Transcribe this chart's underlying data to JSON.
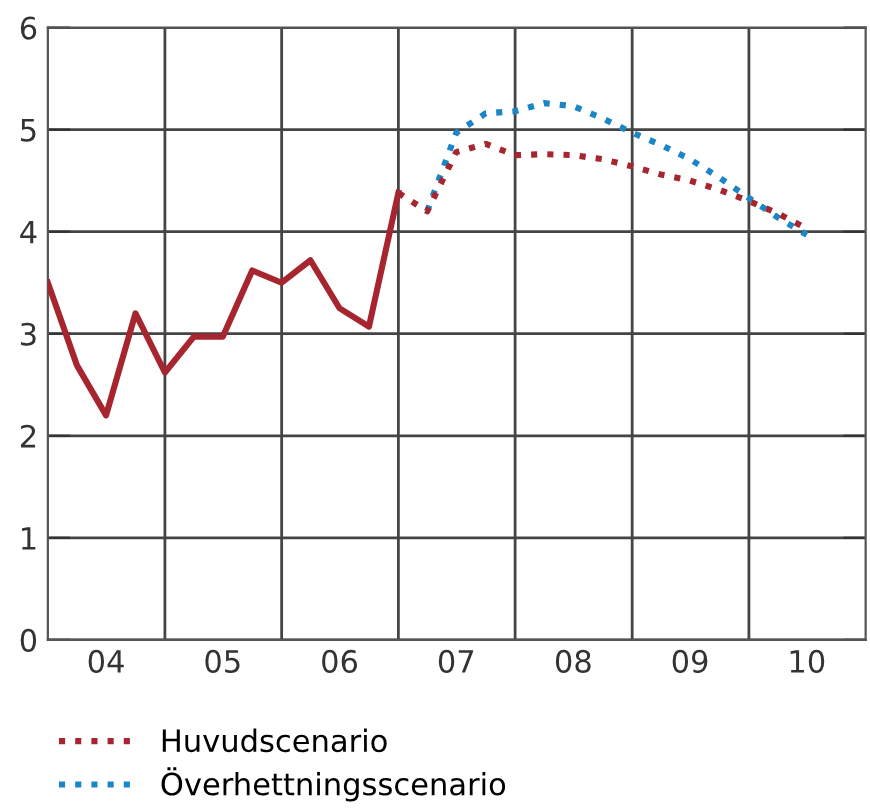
{
  "chart_data": {
    "type": "line",
    "xlim": [
      "2004-01-01",
      "2011-01-01"
    ],
    "ylim": [
      0,
      6
    ],
    "yticks": [
      0,
      1,
      2,
      3,
      4,
      5,
      6
    ],
    "xticks": [
      {
        "value": "2005-01-01",
        "label": null
      },
      {
        "value": "2006-01-01",
        "label": null
      },
      {
        "value": "2007-01-01",
        "label": null
      },
      {
        "value": "2008-01-01",
        "label": null
      },
      {
        "value": "2009-01-01",
        "label": null
      },
      {
        "value": "2010-01-01",
        "label": null
      },
      {
        "value": "2004-07-01",
        "label": "04"
      },
      {
        "value": "2005-07-01",
        "label": "05"
      },
      {
        "value": "2006-07-01",
        "label": "06"
      },
      {
        "value": "2007-07-01",
        "label": "07"
      },
      {
        "value": "2008-07-01",
        "label": "08"
      },
      {
        "value": "2009-07-01",
        "label": "09"
      },
      {
        "value": "2010-07-01",
        "label": "10"
      }
    ],
    "grid": true,
    "legend": "bottom",
    "series": [
      {
        "color": "#a6252f",
        "line_style": "solid",
        "x": [
          "2004-01",
          "2004-04",
          "2004-07",
          "2004-10",
          "2005-01",
          "2005-04",
          "2005-07",
          "2005-10",
          "2006-01",
          "2006-04",
          "2006-07",
          "2006-10",
          "2007-01"
        ],
        "values": [
          3.5,
          2.69,
          2.2,
          3.2,
          2.62,
          2.97,
          2.97,
          3.62,
          3.5,
          3.72,
          3.25,
          3.07,
          4.38
        ]
      },
      {
        "name": "Överhettningsscenario",
        "color": "#1a86c8",
        "line_style": "dotted",
        "x": [
          "2007-04",
          "2007-07",
          "2007-10",
          "2008-01",
          "2008-04",
          "2008-07",
          "2008-10",
          "2009-01",
          "2009-04",
          "2009-07",
          "2009-10",
          "2010-01",
          "2010-04",
          "2010-07"
        ],
        "values": [
          4.2,
          4.97,
          5.16,
          5.18,
          5.26,
          5.23,
          5.11,
          4.97,
          4.85,
          4.71,
          4.53,
          4.33,
          4.14,
          3.97
        ]
      },
      {
        "name": "Huvudscenario",
        "color": "#a6252f",
        "line_style": "dotted",
        "x": [
          "2007-01",
          "2007-04",
          "2007-07",
          "2007-10",
          "2008-01",
          "2008-04",
          "2008-07",
          "2008-10",
          "2009-01",
          "2009-04",
          "2009-07",
          "2009-10",
          "2010-01",
          "2010-04",
          "2010-07"
        ],
        "values": [
          4.38,
          4.2,
          4.78,
          4.86,
          4.75,
          4.76,
          4.75,
          4.71,
          4.64,
          4.56,
          4.5,
          4.41,
          4.3,
          4.18,
          4.03
        ]
      }
    ]
  }
}
